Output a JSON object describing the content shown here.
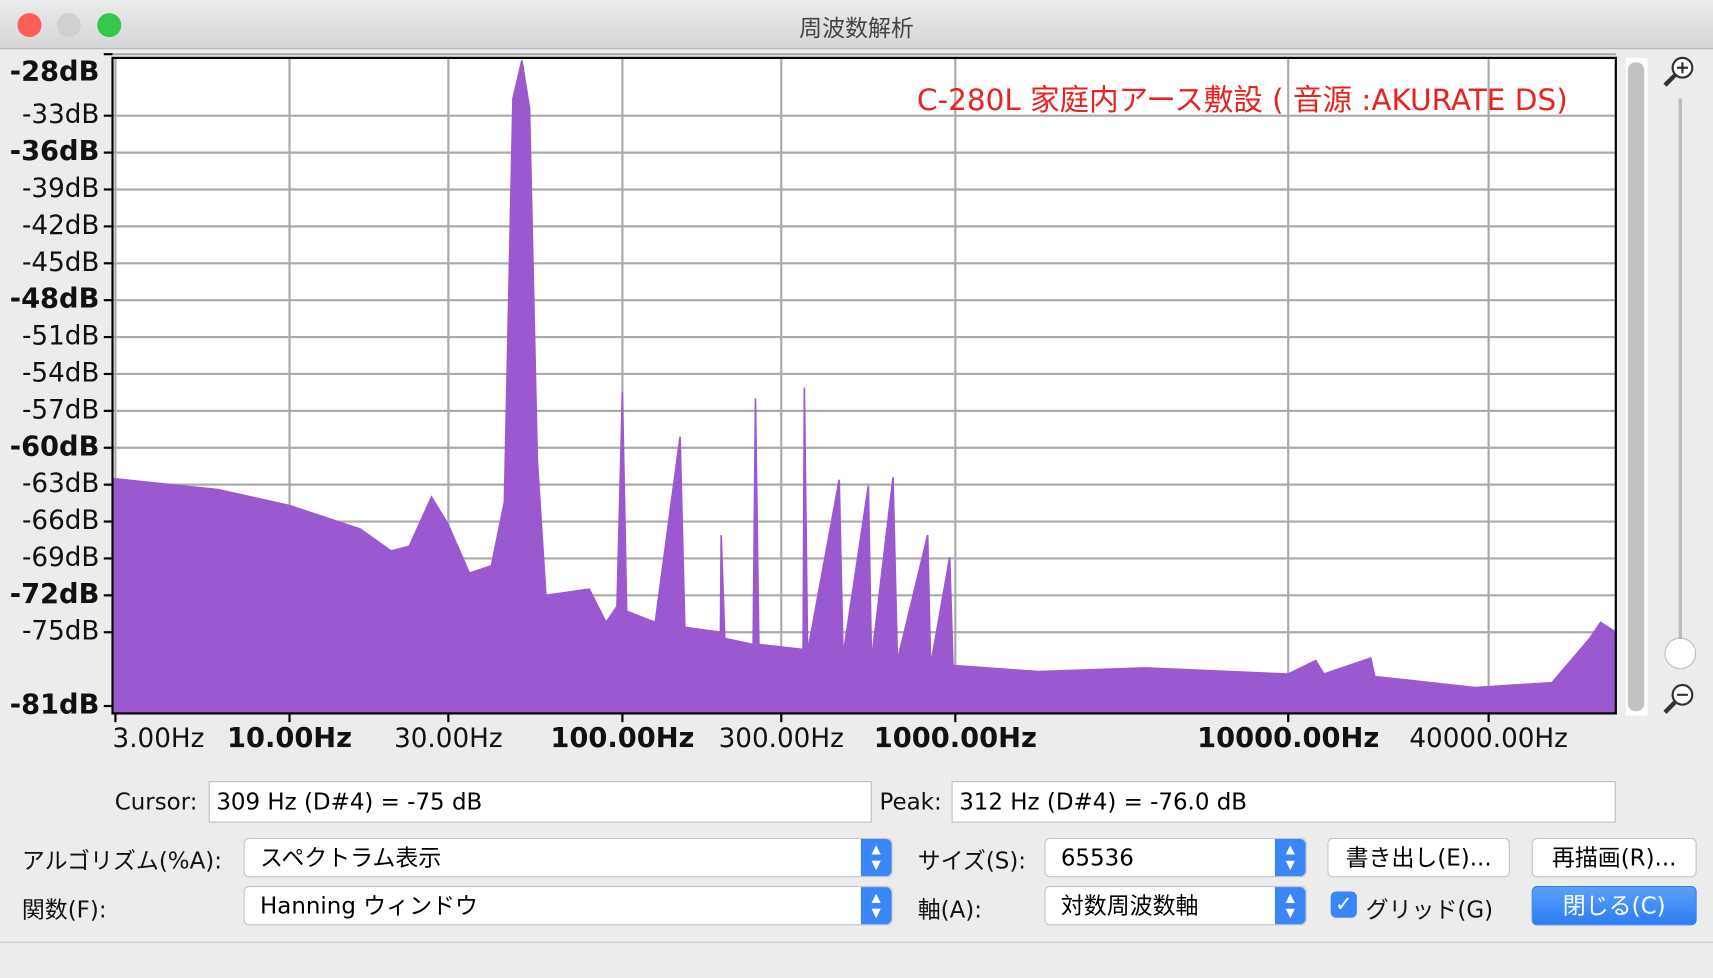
{
  "window": {
    "title": "周波数解析"
  },
  "chart_data": {
    "type": "area",
    "annotation": "C-280L 家庭内アース敷設 ( 音源 :AKURATE DS)",
    "color": "#9b59d0",
    "x_scale": "log",
    "grid": true,
    "x": [
      2.94,
      6.1,
      10,
      16.3,
      20.2,
      22.9,
      26.7,
      29.9,
      34.7,
      40.4,
      44.2,
      46.9,
      49.9,
      52.6,
      55.5,
      58.9,
      79.5,
      89.3,
      96.3,
      100,
      103,
      125.5,
      149,
      154,
      197,
      198,
      203,
      247,
      251,
      257,
      349,
      352,
      360,
      448,
      460,
      548,
      560,
      650,
      670,
      826,
      843,
      962,
      984,
      1770,
      3740,
      10000,
      12100,
      12800,
      17700,
      18200,
      36400,
      62000,
      80500,
      86800,
      96400
    ],
    "values": [
      -62.5,
      -63.4,
      -64.7,
      -66.6,
      -68.4,
      -68,
      -64,
      -66.2,
      -70.2,
      -69.6,
      -64.4,
      -31.6,
      -28.5,
      -32.4,
      -60.9,
      -72,
      -71.5,
      -74.2,
      -72.9,
      -55.5,
      -73.3,
      -74.2,
      -59.1,
      -74.6,
      -75,
      -67.1,
      -75.5,
      -76,
      -56,
      -76,
      -76.4,
      -55.1,
      -76.6,
      -62.6,
      -76.9,
      -63.1,
      -77.3,
      -62.4,
      -77.3,
      -67.1,
      -77.7,
      -68.9,
      -77.7,
      -78.2,
      -77.9,
      -78.4,
      -77.3,
      -78.4,
      -77.1,
      -78.6,
      -79.5,
      -79.1,
      -75.5,
      -74.2,
      -75
    ],
    "xlim": [
      2.94,
      96400
    ],
    "ylim": [
      -81.6,
      -28.3
    ],
    "xticks": [
      {
        "value": 3,
        "label": "3.00Hz"
      },
      {
        "value": 10,
        "label": "10.00Hz"
      },
      {
        "value": 30,
        "label": "30.00Hz"
      },
      {
        "value": 100,
        "label": "100.00Hz"
      },
      {
        "value": 300,
        "label": "300.00Hz"
      },
      {
        "value": 1000,
        "label": "1000.00Hz"
      },
      {
        "value": 10000,
        "label": "10000.00Hz"
      },
      {
        "value": 40000,
        "label": "40000.00Hz"
      }
    ],
    "yticks": [
      {
        "value": -28,
        "label": "-28dB"
      },
      {
        "value": -33,
        "label": "-33dB"
      },
      {
        "value": -36,
        "label": "-36dB"
      },
      {
        "value": -39,
        "label": "-39dB"
      },
      {
        "value": -42,
        "label": "-42dB"
      },
      {
        "value": -45,
        "label": "-45dB"
      },
      {
        "value": -48,
        "label": "-48dB"
      },
      {
        "value": -51,
        "label": "-51dB"
      },
      {
        "value": -54,
        "label": "-54dB"
      },
      {
        "value": -57,
        "label": "-57dB"
      },
      {
        "value": -60,
        "label": "-60dB"
      },
      {
        "value": -63,
        "label": "-63dB"
      },
      {
        "value": -66,
        "label": "-66dB"
      },
      {
        "value": -69,
        "label": "-69dB"
      },
      {
        "value": -72,
        "label": "-72dB"
      },
      {
        "value": -75,
        "label": "-75dB"
      },
      {
        "value": -81,
        "label": "-81dB"
      }
    ]
  },
  "controls": {
    "cursor_label": "Cursor:",
    "cursor_value": "309 Hz (D#4) = -75 dB",
    "peak_label": "Peak:",
    "peak_value": "312 Hz (D#4) = -76.0 dB",
    "algorithm_label": "アルゴリズム(%A):",
    "algorithm_value": "スペクトラム表示",
    "size_label": "サイズ(S):",
    "size_value": "65536",
    "export_button": "書き出し(E)...",
    "replot_button": "再描画(R)...",
    "function_label": "関数(F):",
    "function_value": "Hanning ウィンドウ",
    "axis_label": "軸(A):",
    "axis_value": "対数周波数軸",
    "grid_checkbox": "グリッド(G)",
    "close_button": "閉じる(C)"
  }
}
